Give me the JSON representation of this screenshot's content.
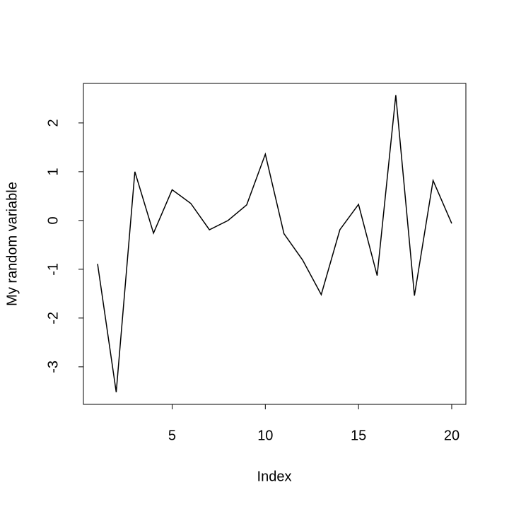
{
  "chart_data": {
    "type": "line",
    "xlabel": "Index",
    "ylabel": "My random variable",
    "x": [
      1,
      2,
      3,
      4,
      5,
      6,
      7,
      8,
      9,
      10,
      11,
      12,
      13,
      14,
      15,
      16,
      17,
      18,
      19,
      20
    ],
    "series": [
      {
        "color": "#000000",
        "values": [
          -0.89,
          -3.52,
          1.0,
          -0.26,
          0.63,
          0.35,
          -0.19,
          0.0,
          0.32,
          1.36,
          -0.27,
          -0.81,
          -1.52,
          -0.19,
          0.33,
          -1.13,
          2.57,
          -1.54,
          0.82,
          -0.06
        ]
      }
    ],
    "xlim": [
      0.24,
      20.76
    ],
    "xticks": [
      5,
      10,
      15,
      20
    ],
    "ylim": [
      -3.77,
      2.81
    ],
    "yticks": [
      -3,
      -2,
      -1,
      0,
      1,
      2
    ]
  }
}
